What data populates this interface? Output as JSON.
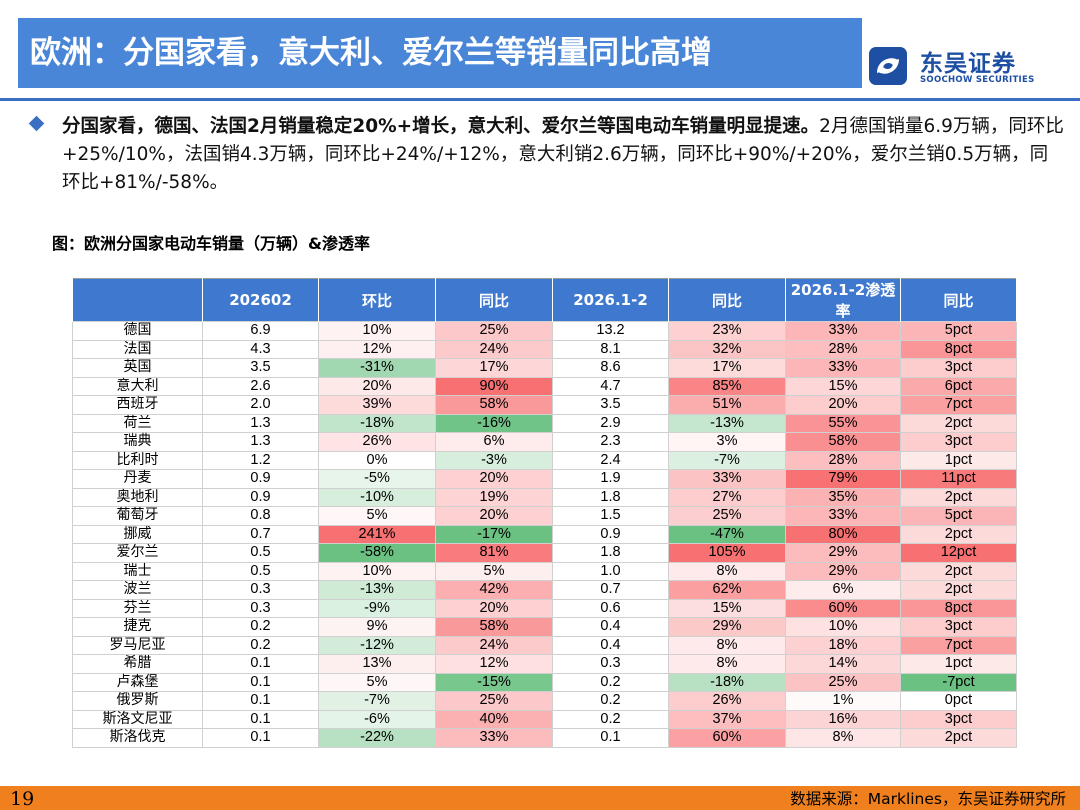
{
  "title": "欧洲：分国家看，意大利、爱尔兰等销量同比高增",
  "logo": {
    "cn": "东吴证券",
    "en": "SOOCHOW SECURITIES"
  },
  "paragraph": {
    "bold": "分国家看，德国、法国2月销量稳定20%+增长，意大利、爱尔兰等国电动车销量明显提速。",
    "normal": "2月德国销量6.9万辆，同环比+25%/10%，法国销4.3万辆，同环比+24%/+12%，意大利销2.6万辆，同环比+90%/+20%，爱尔兰销0.5万辆，同环比+81%/-58%。"
  },
  "figure_title": "图：欧洲分国家电动车销量（万辆）&渗透率",
  "table": {
    "headers": [
      "",
      "202602",
      "环比",
      "同比",
      "2026.1-2",
      "同比",
      "2026.1-2渗透率",
      "同比"
    ],
    "rows": [
      [
        "德国",
        "6.9",
        "10%",
        "25%",
        "13.2",
        "23%",
        "33%",
        "5pct"
      ],
      [
        "法国",
        "4.3",
        "12%",
        "24%",
        "8.1",
        "32%",
        "28%",
        "8pct"
      ],
      [
        "英国",
        "3.5",
        "-31%",
        "17%",
        "8.6",
        "17%",
        "33%",
        "3pct"
      ],
      [
        "意大利",
        "2.6",
        "20%",
        "90%",
        "4.7",
        "85%",
        "15%",
        "6pct"
      ],
      [
        "西班牙",
        "2.0",
        "39%",
        "58%",
        "3.5",
        "51%",
        "20%",
        "7pct"
      ],
      [
        "荷兰",
        "1.3",
        "-18%",
        "-16%",
        "2.9",
        "-13%",
        "55%",
        "2pct"
      ],
      [
        "瑞典",
        "1.3",
        "26%",
        "6%",
        "2.3",
        "3%",
        "58%",
        "3pct"
      ],
      [
        "比利时",
        "1.2",
        "0%",
        "-3%",
        "2.4",
        "-7%",
        "28%",
        "1pct"
      ],
      [
        "丹麦",
        "0.9",
        "-5%",
        "20%",
        "1.9",
        "33%",
        "79%",
        "11pct"
      ],
      [
        "奥地利",
        "0.9",
        "-10%",
        "19%",
        "1.8",
        "27%",
        "35%",
        "2pct"
      ],
      [
        "葡萄牙",
        "0.8",
        "5%",
        "20%",
        "1.5",
        "25%",
        "33%",
        "5pct"
      ],
      [
        "挪威",
        "0.7",
        "241%",
        "-17%",
        "0.9",
        "-47%",
        "80%",
        "2pct"
      ],
      [
        "爱尔兰",
        "0.5",
        "-58%",
        "81%",
        "1.8",
        "105%",
        "29%",
        "12pct"
      ],
      [
        "瑞士",
        "0.5",
        "10%",
        "5%",
        "1.0",
        "8%",
        "29%",
        "2pct"
      ],
      [
        "波兰",
        "0.3",
        "-13%",
        "42%",
        "0.7",
        "62%",
        "6%",
        "2pct"
      ],
      [
        "芬兰",
        "0.3",
        "-9%",
        "20%",
        "0.6",
        "15%",
        "60%",
        "8pct"
      ],
      [
        "捷克",
        "0.2",
        "9%",
        "58%",
        "0.4",
        "29%",
        "10%",
        "3pct"
      ],
      [
        "罗马尼亚",
        "0.2",
        "-12%",
        "24%",
        "0.4",
        "8%",
        "18%",
        "7pct"
      ],
      [
        "希腊",
        "0.1",
        "13%",
        "12%",
        "0.3",
        "8%",
        "14%",
        "1pct"
      ],
      [
        "卢森堡",
        "0.1",
        "5%",
        "-15%",
        "0.2",
        "-18%",
        "25%",
        "-7pct"
      ],
      [
        "俄罗斯",
        "0.1",
        "-7%",
        "25%",
        "0.2",
        "26%",
        "1%",
        "0pct"
      ],
      [
        "斯洛文尼亚",
        "0.1",
        "-6%",
        "40%",
        "0.2",
        "37%",
        "16%",
        "3pct"
      ],
      [
        "斯洛伐克",
        "0.1",
        "-22%",
        "33%",
        "0.1",
        "60%",
        "8%",
        "2pct"
      ]
    ]
  },
  "page_number": "19",
  "source": "数据来源：Marklines，东吴证券研究所",
  "colors": {
    "title_bar": "#4a86d8",
    "header": "#3f78cf",
    "footer": "#f07f1e",
    "positive_max": "#f8696b",
    "negative_max": "#63be7b"
  }
}
